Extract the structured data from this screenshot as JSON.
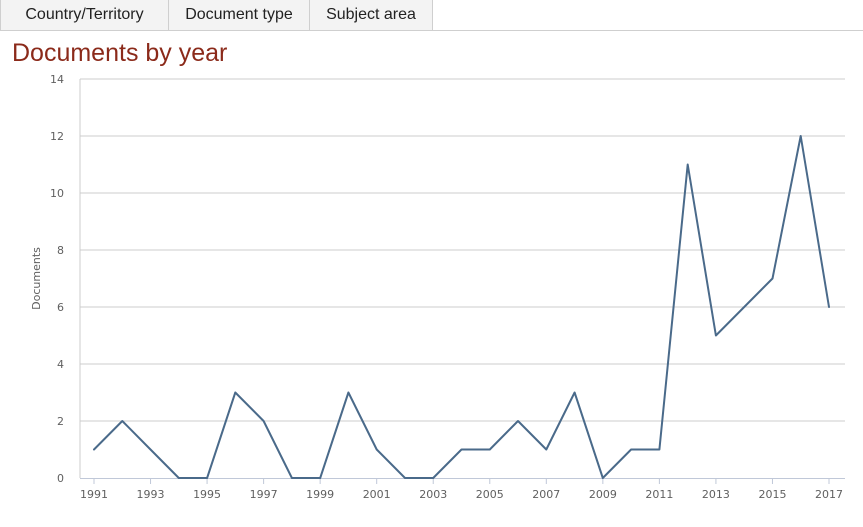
{
  "tabs": [
    {
      "label": "Country/Territory"
    },
    {
      "label": "Document type"
    },
    {
      "label": "Subject area"
    }
  ],
  "chart_title": "Documents by year",
  "colors": {
    "line": "#4a6a8a",
    "title": "#8b2a1a",
    "grid": "#cccccc"
  },
  "chart_data": {
    "type": "line",
    "title": "Documents by year",
    "xlabel": "",
    "ylabel": "Documents",
    "ylim": [
      0,
      14
    ],
    "xlim": [
      1991,
      2017
    ],
    "grid": true,
    "y_ticks": [
      "0",
      "2",
      "4",
      "6",
      "8",
      "10",
      "12",
      "14"
    ],
    "x_ticks": [
      "1991",
      "1993",
      "1995",
      "1997",
      "1999",
      "2001",
      "2003",
      "2005",
      "2007",
      "2009",
      "2011",
      "2013",
      "2015",
      "2017"
    ],
    "x": [
      1991,
      1992,
      1993,
      1994,
      1995,
      1996,
      1997,
      1998,
      1999,
      2000,
      2001,
      2002,
      2003,
      2004,
      2005,
      2006,
      2007,
      2008,
      2009,
      2010,
      2011,
      2012,
      2013,
      2014,
      2015,
      2016,
      2017
    ],
    "series": [
      {
        "values": [
          1,
          2,
          1,
          0,
          0,
          3,
          2,
          0,
          0,
          3,
          1,
          0,
          0,
          1,
          1,
          2,
          1,
          3,
          0,
          1,
          1,
          11,
          5,
          6,
          7,
          12,
          6
        ]
      }
    ]
  }
}
